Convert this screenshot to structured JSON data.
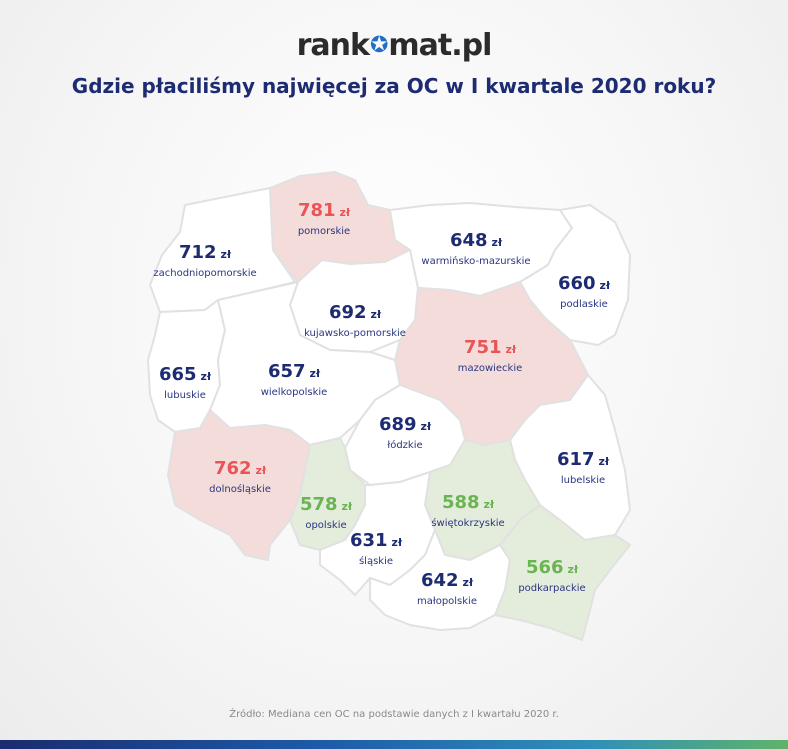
{
  "brand": {
    "logo_left": "rank",
    "logo_right": "mat.pl"
  },
  "title": "Gdzie płaciliśmy najwięcej za OC w I kwartale 2020 roku?",
  "source": "Źródło: Mediana cen OC na podstawie danych z I kwartału 2020 r.",
  "unit": "zł",
  "colors": {
    "high": "#e95457",
    "mid": "#1d2b72",
    "low": "#6ab552",
    "fill_high": "#f4dcdb",
    "fill_mid": "#ffffff",
    "fill_low": "#e4ecdc"
  },
  "regions": [
    {
      "name": "zachodniopomorskie",
      "value": "712",
      "level": "mid"
    },
    {
      "name": "pomorskie",
      "value": "781",
      "level": "high"
    },
    {
      "name": "warmińsko-mazurskie",
      "value": "648",
      "level": "mid"
    },
    {
      "name": "podlaskie",
      "value": "660",
      "level": "mid"
    },
    {
      "name": "kujawsko-pomorskie",
      "value": "692",
      "level": "mid"
    },
    {
      "name": "mazowieckie",
      "value": "751",
      "level": "high"
    },
    {
      "name": "lubuskie",
      "value": "665",
      "level": "mid"
    },
    {
      "name": "wielkopolskie",
      "value": "657",
      "level": "mid"
    },
    {
      "name": "łódzkie",
      "value": "689",
      "level": "mid"
    },
    {
      "name": "lubelskie",
      "value": "617",
      "level": "mid"
    },
    {
      "name": "dolnośląskie",
      "value": "762",
      "level": "high"
    },
    {
      "name": "opolskie",
      "value": "578",
      "level": "low"
    },
    {
      "name": "świętokrzyskie",
      "value": "588",
      "level": "low"
    },
    {
      "name": "śląskie",
      "value": "631",
      "level": "mid"
    },
    {
      "name": "małopolskie",
      "value": "642",
      "level": "mid"
    },
    {
      "name": "podkarpackie",
      "value": "566",
      "level": "low"
    }
  ]
}
